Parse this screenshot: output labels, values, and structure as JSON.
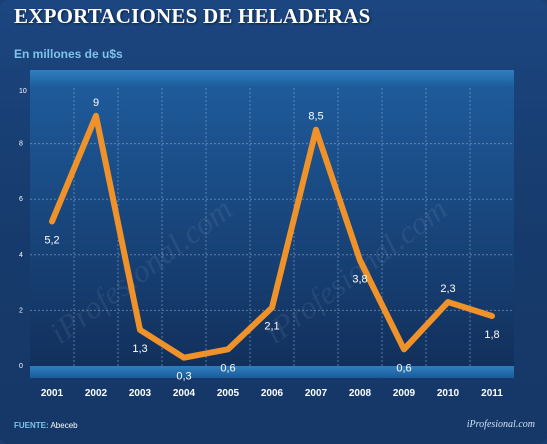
{
  "header": {
    "title": "EXPORTACIONES DE HELADERAS",
    "subtitle": "En millones de u$s"
  },
  "footer": {
    "source_label": "FUENTE:",
    "source_value": "Abeceb",
    "brand": "iProfesional.com"
  },
  "watermark": "iProfesional.com",
  "colors": {
    "line": "#f0922a",
    "subtitle": "#7fc3ea",
    "plot_top": "#1e5a9a",
    "plot_bottom": "#12305c"
  },
  "chart_data": {
    "type": "line",
    "title": "EXPORTACIONES DE HELADERAS",
    "subtitle": "En millones de u$s",
    "categories": [
      "2001",
      "2002",
      "2003",
      "2004",
      "2005",
      "2006",
      "2007",
      "2008",
      "2009",
      "2010",
      "2011"
    ],
    "series": [
      {
        "values": [
          5.2,
          9,
          1.3,
          0.3,
          0.6,
          2.1,
          8.5,
          3.8,
          0.6,
          2.3,
          1.8
        ],
        "labels": [
          "5,2",
          "9",
          "1,3",
          "0,3",
          "0,6",
          "2,1",
          "8,5",
          "3,8",
          "0,6",
          "2,3",
          "1,8"
        ]
      }
    ],
    "yticks": [
      "0",
      "2",
      "4",
      "6",
      "8",
      "10"
    ],
    "ylim": [
      0,
      10
    ],
    "grid": true,
    "legend": "none"
  }
}
